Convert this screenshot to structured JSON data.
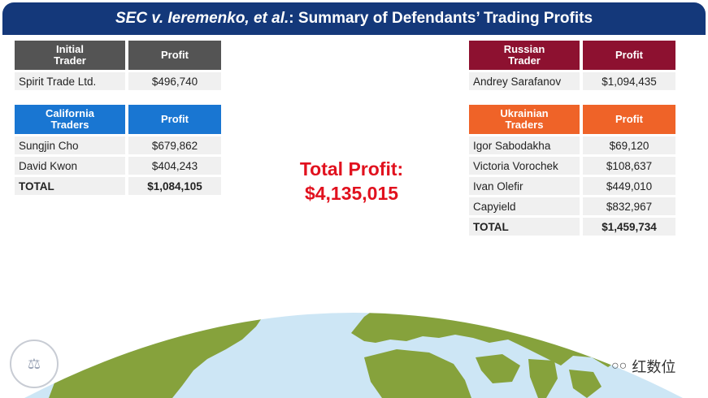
{
  "title": {
    "case": "SEC v. Ieremenko, et al.",
    "suffix": ": Summary of Defendants’ Trading Profits"
  },
  "initial": {
    "header": [
      "Initial\nTrader",
      "Profit"
    ],
    "rows": [
      [
        "Spirit Trade Ltd.",
        "$496,740"
      ]
    ]
  },
  "california": {
    "header": [
      "California\nTraders",
      "Profit"
    ],
    "rows": [
      [
        "Sungjin Cho",
        "$679,862"
      ],
      [
        "David Kwon",
        "$404,243"
      ]
    ],
    "total": [
      "TOTAL",
      "$1,084,105"
    ]
  },
  "russian": {
    "header": [
      "Russian\nTrader",
      "Profit"
    ],
    "rows": [
      [
        "Andrey Sarafanov",
        "$1,094,435"
      ]
    ]
  },
  "ukrainian": {
    "header": [
      "Ukrainian\nTraders",
      "Profit"
    ],
    "rows": [
      [
        "Igor Sabodakha",
        "$69,120"
      ],
      [
        "Victoria Vorochek",
        "$108,637"
      ],
      [
        "Ivan Olefir",
        "$449,010"
      ],
      [
        "Capyield",
        "$832,967"
      ]
    ],
    "total": [
      "TOTAL",
      "$1,459,734"
    ]
  },
  "total_profit": {
    "label": "Total Profit:",
    "value": "$4,135,015"
  },
  "watermark": "红数位",
  "colors": {
    "title_bar": "#14387a",
    "initial_header": "#545454",
    "california_header": "#1976d2",
    "russian_header": "#8d1130",
    "ukrainian_header": "#ef6328",
    "total_profit": "#e1111e",
    "ocean": "#cde6f5",
    "land": "#86a23c"
  }
}
